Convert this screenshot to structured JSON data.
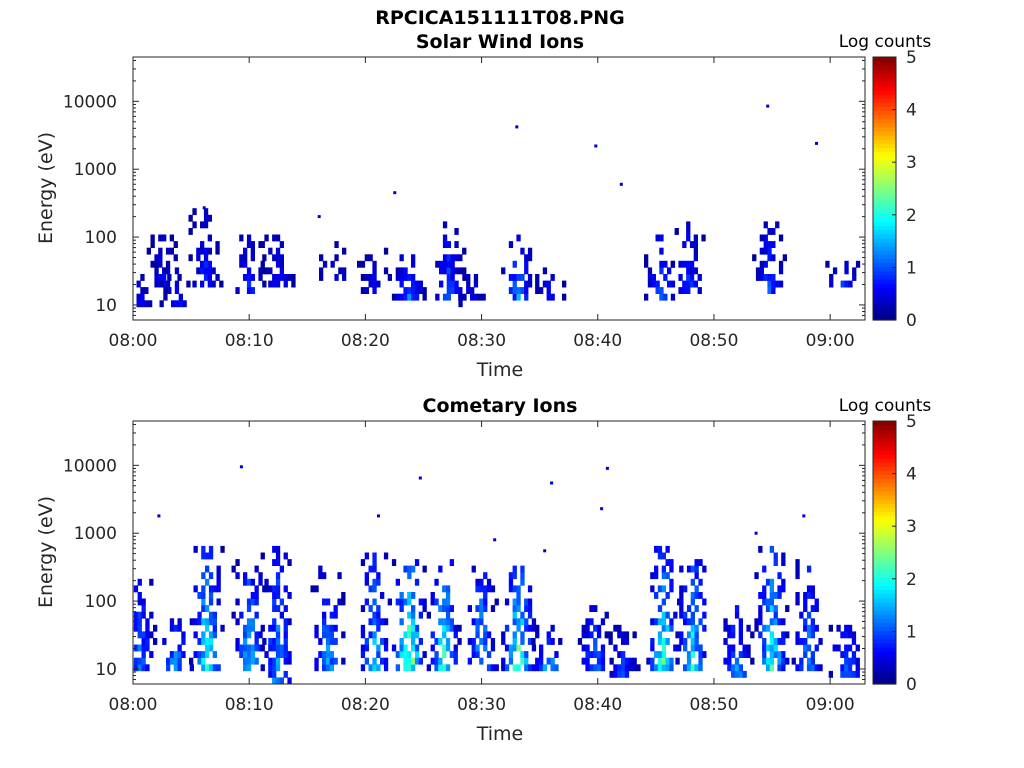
{
  "figure": {
    "title": "RPCICA151111T08.PNG"
  },
  "colors": {
    "axes": "#262626",
    "colormap": "jet",
    "background": "#ffffff"
  },
  "chart_data": [
    {
      "type": "heatmap",
      "title": "Solar Wind Ions",
      "xlabel": "Time",
      "ylabel": "Energy (eV)",
      "x_ticks": [
        "08:00",
        "08:10",
        "08:20",
        "08:30",
        "08:40",
        "08:50",
        "09:00"
      ],
      "y_ticks": [
        "10",
        "100",
        "1000",
        "10000"
      ],
      "y_scale": "log",
      "ylim": [
        6,
        45000
      ],
      "xlim_minutes_after_0800": [
        0,
        63
      ],
      "colorbar": {
        "label": "Log counts",
        "ticks": [
          "0",
          "1",
          "2",
          "3",
          "4",
          "5"
        ],
        "range": [
          0,
          5
        ]
      },
      "activity": [
        {
          "t": 0.3,
          "lo": 10,
          "hi": 28,
          "peak": 0.8
        },
        {
          "t": 2.5,
          "lo": 18,
          "hi": 140,
          "peak": 0.8
        },
        {
          "t": 3.6,
          "lo": 10,
          "hi": 35,
          "peak": 0.9
        },
        {
          "t": 6.1,
          "lo": 20,
          "hi": 270,
          "peak": 1.0
        },
        {
          "t": 9.8,
          "lo": 15,
          "hi": 110,
          "peak": 1.1
        },
        {
          "t": 12.3,
          "lo": 20,
          "hi": 110,
          "peak": 0.9
        },
        {
          "t": 17.0,
          "lo": 25,
          "hi": 80,
          "peak": 0.8
        },
        {
          "t": 20.6,
          "lo": 15,
          "hi": 80,
          "peak": 0.7
        },
        {
          "t": 23.6,
          "lo": 13,
          "hi": 60,
          "peak": 1.4
        },
        {
          "t": 27.0,
          "lo": 12,
          "hi": 170,
          "peak": 1.3
        },
        {
          "t": 29.0,
          "lo": 10,
          "hi": 30,
          "peak": 0.8
        },
        {
          "t": 33.0,
          "lo": 13,
          "hi": 120,
          "peak": 1.6
        },
        {
          "t": 35.6,
          "lo": 12,
          "hi": 35,
          "peak": 0.9
        },
        {
          "t": 45.3,
          "lo": 12,
          "hi": 110,
          "peak": 1.4
        },
        {
          "t": 47.6,
          "lo": 15,
          "hi": 160,
          "peak": 1.2
        },
        {
          "t": 54.6,
          "lo": 15,
          "hi": 160,
          "peak": 1.2
        },
        {
          "t": 60.9,
          "lo": 20,
          "hi": 45,
          "peak": 1.2
        }
      ],
      "isolated_points_energy_eV": [
        {
          "t": 6.0,
          "e": 270
        },
        {
          "t": 15.9,
          "e": 200
        },
        {
          "t": 22.4,
          "e": 450
        },
        {
          "t": 32.9,
          "e": 4200
        },
        {
          "t": 39.7,
          "e": 2200
        },
        {
          "t": 41.9,
          "e": 600
        },
        {
          "t": 54.5,
          "e": 8500
        },
        {
          "t": 58.7,
          "e": 2400
        }
      ]
    },
    {
      "type": "heatmap",
      "title": "Cometary Ions",
      "xlabel": "Time",
      "ylabel": "Energy (eV)",
      "x_ticks": [
        "08:00",
        "08:10",
        "08:20",
        "08:30",
        "08:40",
        "08:50",
        "09:00"
      ],
      "y_ticks": [
        "10",
        "100",
        "1000",
        "10000"
      ],
      "y_scale": "log",
      "ylim": [
        6,
        45000
      ],
      "xlim_minutes_after_0800": [
        0,
        63
      ],
      "colorbar": {
        "label": "Log counts",
        "ticks": [
          "0",
          "1",
          "2",
          "3",
          "4",
          "5"
        ],
        "range": [
          0,
          5
        ]
      },
      "activity": [
        {
          "t": 0.4,
          "lo": 10,
          "hi": 230,
          "peak": 1.6
        },
        {
          "t": 3.5,
          "lo": 10,
          "hi": 60,
          "peak": 1.8
        },
        {
          "t": 6.2,
          "lo": 10,
          "hi": 600,
          "peak": 2.6
        },
        {
          "t": 9.8,
          "lo": 10,
          "hi": 450,
          "peak": 2.2
        },
        {
          "t": 12.3,
          "lo": 6,
          "hi": 600,
          "peak": 1.9
        },
        {
          "t": 16.6,
          "lo": 10,
          "hi": 350,
          "peak": 1.8
        },
        {
          "t": 20.6,
          "lo": 10,
          "hi": 500,
          "peak": 2.0
        },
        {
          "t": 23.6,
          "lo": 10,
          "hi": 400,
          "peak": 3.4
        },
        {
          "t": 26.6,
          "lo": 10,
          "hi": 500,
          "peak": 2.5
        },
        {
          "t": 29.8,
          "lo": 10,
          "hi": 350,
          "peak": 2.0
        },
        {
          "t": 33.0,
          "lo": 10,
          "hi": 350,
          "peak": 2.9
        },
        {
          "t": 35.6,
          "lo": 10,
          "hi": 40,
          "peak": 1.9
        },
        {
          "t": 39.6,
          "lo": 10,
          "hi": 90,
          "peak": 1.6
        },
        {
          "t": 42.0,
          "lo": 8,
          "hi": 40,
          "peak": 1.2
        },
        {
          "t": 45.5,
          "lo": 10,
          "hi": 600,
          "peak": 2.6
        },
        {
          "t": 48.0,
          "lo": 10,
          "hi": 450,
          "peak": 2.4
        },
        {
          "t": 51.8,
          "lo": 8,
          "hi": 90,
          "peak": 1.7
        },
        {
          "t": 54.8,
          "lo": 10,
          "hi": 600,
          "peak": 2.5
        },
        {
          "t": 58.0,
          "lo": 10,
          "hi": 450,
          "peak": 1.7
        },
        {
          "t": 61.2,
          "lo": 8,
          "hi": 40,
          "peak": 1.7
        }
      ],
      "isolated_points_energy_eV": [
        {
          "t": 2.1,
          "e": 1800
        },
        {
          "t": 9.2,
          "e": 9500
        },
        {
          "t": 21.0,
          "e": 1800
        },
        {
          "t": 24.6,
          "e": 6500
        },
        {
          "t": 31.0,
          "e": 800
        },
        {
          "t": 35.9,
          "e": 5500
        },
        {
          "t": 35.3,
          "e": 550
        },
        {
          "t": 40.2,
          "e": 2300
        },
        {
          "t": 40.7,
          "e": 9000
        },
        {
          "t": 53.5,
          "e": 1000
        },
        {
          "t": 57.6,
          "e": 1800
        }
      ]
    }
  ]
}
